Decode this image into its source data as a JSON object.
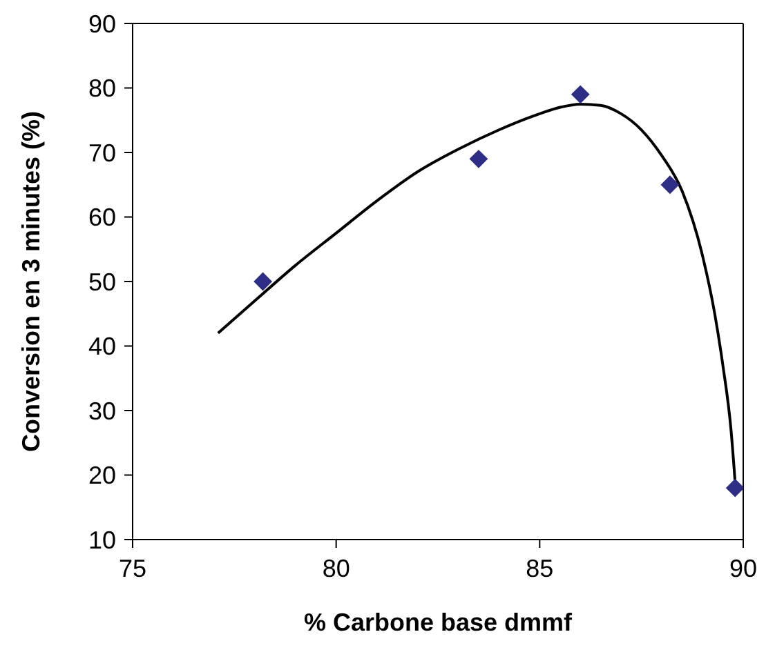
{
  "chart_data": {
    "type": "scatter",
    "xlabel": "% Carbone base dmmf",
    "ylabel": "Conversion en 3 minutes (%)",
    "xlim": [
      75,
      90
    ],
    "xticks": [
      75,
      80,
      85,
      90
    ],
    "ylim": [
      10,
      90
    ],
    "yticks": [
      10,
      20,
      30,
      40,
      50,
      60,
      70,
      80,
      90
    ],
    "grid": false,
    "series": [
      {
        "color": "#2e2e86",
        "marker": "diamond",
        "x": [
          78.2,
          83.5,
          86.0,
          88.2,
          89.8
        ],
        "values": [
          50,
          69,
          79,
          65,
          18
        ]
      },
      {
        "type": "line",
        "color": "#000000",
        "marker": "none",
        "x": [
          77.1,
          78,
          79,
          80,
          81,
          82,
          83,
          84,
          85,
          85.5,
          86,
          86.5,
          87,
          87.5,
          88,
          88.5,
          89,
          89.3,
          89.5,
          89.7,
          89.8
        ],
        "values": [
          42,
          47,
          52.5,
          57.5,
          62.5,
          67,
          70.5,
          73.5,
          76,
          77,
          77.5,
          77.3,
          76,
          73.5,
          69.5,
          64,
          54,
          45,
          37,
          27,
          19
        ]
      }
    ]
  }
}
